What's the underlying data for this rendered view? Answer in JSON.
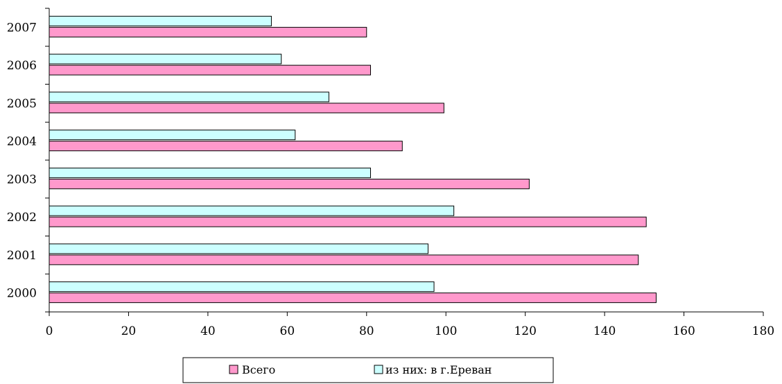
{
  "chart_data": {
    "type": "bar",
    "orientation": "horizontal",
    "categories": [
      "2000",
      "2001",
      "2002",
      "2003",
      "2004",
      "2005",
      "2006",
      "2007"
    ],
    "series": [
      {
        "name": "Всего",
        "color": "#ff99cc",
        "values": [
          153,
          148.5,
          150.5,
          121,
          89,
          99.5,
          81,
          80
        ]
      },
      {
        "name": "из них: в г.Ереван",
        "color": "#ccffff",
        "values": [
          97,
          95.5,
          102,
          81,
          62,
          70.5,
          58.5,
          56
        ]
      }
    ],
    "xlim": [
      0,
      180
    ],
    "x_ticks": [
      "0",
      "20",
      "40",
      "60",
      "80",
      "100",
      "120",
      "140",
      "160",
      "180"
    ],
    "legend_position": "bottom",
    "grid": false
  }
}
